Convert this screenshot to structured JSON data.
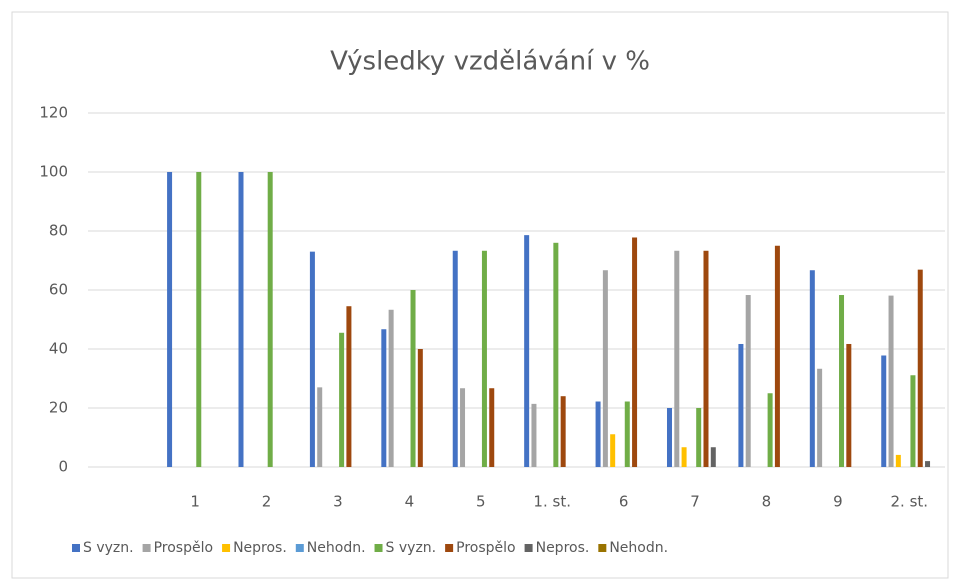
{
  "chart_data": {
    "type": "bar",
    "title": "Výsledky vzdělávání v %",
    "categories": [
      null,
      "1",
      "2",
      "3",
      "4",
      "5",
      "1. st.",
      "6",
      "7",
      "8",
      "9",
      "2. st."
    ],
    "series": [
      {
        "name": "S vyzn.",
        "color": "#4472c4",
        "values": [
          null,
          100,
          100,
          73,
          46.7,
          73.3,
          78.6,
          22.2,
          20,
          41.7,
          66.7,
          37.8
        ]
      },
      {
        "name": "Prospělo",
        "color": "#a5a5a5",
        "values": [
          null,
          0,
          0,
          27,
          53.3,
          26.7,
          21.4,
          66.7,
          73.3,
          58.3,
          33.3,
          58.1
        ]
      },
      {
        "name": "Nepros.",
        "color": "#ffc000",
        "values": [
          null,
          0,
          0,
          0,
          0,
          0,
          0,
          11.1,
          6.7,
          0,
          0,
          4.1
        ]
      },
      {
        "name": "Nehodn.",
        "color": "#5b9bd5",
        "values": [
          null,
          0,
          0,
          0,
          0,
          0,
          0,
          0,
          0,
          0,
          0,
          0
        ]
      },
      {
        "name": "S vyzn.",
        "color": "#70ad47",
        "values": [
          null,
          100,
          100,
          45.5,
          60,
          73.3,
          76,
          22.2,
          20,
          25,
          58.3,
          31.1
        ]
      },
      {
        "name": "Prospělo",
        "color": "#9e480e",
        "values": [
          null,
          0,
          0,
          54.5,
          40,
          26.7,
          24,
          77.8,
          73.3,
          75,
          41.7,
          66.9
        ]
      },
      {
        "name": "Nepros.",
        "color": "#636363",
        "values": [
          null,
          0,
          0,
          0,
          0,
          0,
          0,
          0,
          6.7,
          0,
          0,
          2
        ]
      },
      {
        "name": "Nehodn.",
        "color": "#997300",
        "values": [
          null,
          0,
          0,
          0,
          0,
          0,
          0,
          0,
          0,
          0,
          0,
          0
        ]
      }
    ],
    "ylim": [
      0,
      120
    ],
    "yticks": [
      0,
      20,
      40,
      60,
      80,
      100,
      120
    ],
    "grid": true,
    "legend": "bottom"
  }
}
